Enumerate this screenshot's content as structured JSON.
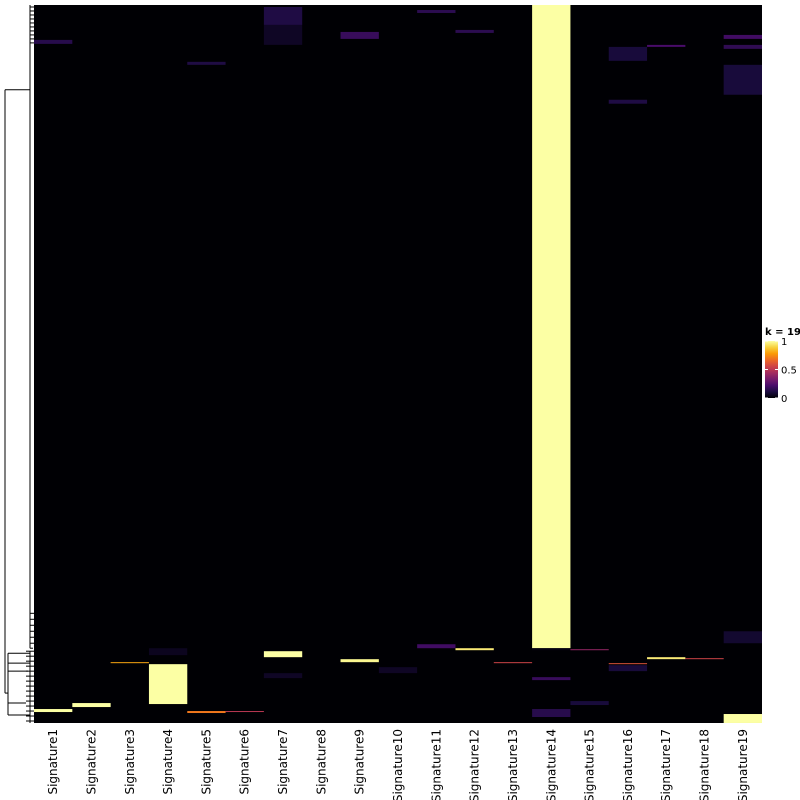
{
  "chart_data": {
    "type": "heatmap",
    "title": "",
    "xlabel": "",
    "ylabel": "",
    "columns": [
      "Signature1",
      "Signature2",
      "Signature3",
      "Signature4",
      "Signature5",
      "Signature6",
      "Signature7",
      "Signature8",
      "Signature9",
      "Signature10",
      "Signature11",
      "Signature12",
      "Signature13",
      "Signature14",
      "Signature15",
      "Signature16",
      "Signature17",
      "Signature18",
      "Signature19"
    ],
    "n_rows": 720,
    "base_value": 0,
    "value_range": [
      0,
      1
    ],
    "colormap": "inferno",
    "colormap_stops": [
      "#000004",
      "#1b0c41",
      "#4a0c6b",
      "#781c6d",
      "#a52c60",
      "#cf4446",
      "#ed6925",
      "#fb9b06",
      "#f7d13d",
      "#fcffa4"
    ],
    "cells": [
      {
        "col": 14,
        "row_start": 0,
        "row_end": 645,
        "value": 1.0
      },
      {
        "col": 14,
        "row_start": 645,
        "row_end": 647,
        "value": 0.02
      },
      {
        "col": 4,
        "row_start": 661,
        "row_end": 701,
        "value": 1.0
      },
      {
        "col": 19,
        "row_start": 711,
        "row_end": 720,
        "value": 1.0
      },
      {
        "col": 7,
        "row_start": 648,
        "row_end": 654,
        "value": 1.0
      },
      {
        "col": 1,
        "row_start": 706,
        "row_end": 709,
        "value": 1.0
      },
      {
        "col": 2,
        "row_start": 700,
        "row_end": 704,
        "value": 1.0
      },
      {
        "col": 9,
        "row_start": 656,
        "row_end": 659,
        "value": 0.98
      },
      {
        "col": 12,
        "row_start": 645,
        "row_end": 647,
        "value": 0.95
      },
      {
        "col": 17,
        "row_start": 654,
        "row_end": 656,
        "value": 0.95
      },
      {
        "col": 3,
        "row_start": 659,
        "row_end": 660,
        "value": 0.8
      },
      {
        "col": 5,
        "row_start": 708,
        "row_end": 710,
        "value": 0.7
      },
      {
        "col": 16,
        "row_start": 660,
        "row_end": 661,
        "value": 0.6
      },
      {
        "col": 13,
        "row_start": 659,
        "row_end": 660,
        "value": 0.55
      },
      {
        "col": 18,
        "row_start": 655,
        "row_end": 656,
        "value": 0.55
      },
      {
        "col": 6,
        "row_start": 708,
        "row_end": 709,
        "value": 0.5
      },
      {
        "col": 15,
        "row_start": 646,
        "row_end": 647,
        "value": 0.4
      },
      {
        "col": 7,
        "row_start": 2,
        "row_end": 20,
        "value": 0.12
      },
      {
        "col": 7,
        "row_start": 20,
        "row_end": 40,
        "value": 0.06
      },
      {
        "col": 9,
        "row_start": 27,
        "row_end": 34,
        "value": 0.18
      },
      {
        "col": 1,
        "row_start": 35,
        "row_end": 39,
        "value": 0.14
      },
      {
        "col": 12,
        "row_start": 25,
        "row_end": 28,
        "value": 0.15
      },
      {
        "col": 16,
        "row_start": 42,
        "row_end": 56,
        "value": 0.1
      },
      {
        "col": 19,
        "row_start": 60,
        "row_end": 90,
        "value": 0.1
      },
      {
        "col": 19,
        "row_start": 30,
        "row_end": 34,
        "value": 0.2
      },
      {
        "col": 19,
        "row_start": 40,
        "row_end": 44,
        "value": 0.16
      },
      {
        "col": 17,
        "row_start": 40,
        "row_end": 42,
        "value": 0.22
      },
      {
        "col": 11,
        "row_start": 5,
        "row_end": 8,
        "value": 0.15
      },
      {
        "col": 11,
        "row_start": 641,
        "row_end": 645,
        "value": 0.2
      },
      {
        "col": 16,
        "row_start": 95,
        "row_end": 99,
        "value": 0.12
      },
      {
        "col": 5,
        "row_start": 57,
        "row_end": 60,
        "value": 0.12
      },
      {
        "col": 19,
        "row_start": 628,
        "row_end": 640,
        "value": 0.08
      },
      {
        "col": 14,
        "row_start": 674,
        "row_end": 677,
        "value": 0.18
      },
      {
        "col": 14,
        "row_start": 706,
        "row_end": 714,
        "value": 0.14
      },
      {
        "col": 16,
        "row_start": 662,
        "row_end": 668,
        "value": 0.1
      },
      {
        "col": 15,
        "row_start": 698,
        "row_end": 702,
        "value": 0.1
      },
      {
        "col": 10,
        "row_start": 664,
        "row_end": 670,
        "value": 0.06
      },
      {
        "col": 4,
        "row_start": 645,
        "row_end": 652,
        "value": 0.05
      },
      {
        "col": 7,
        "row_start": 670,
        "row_end": 675,
        "value": 0.06
      }
    ],
    "legend": {
      "title": "k = 19",
      "ticks": [
        1,
        0.5,
        0
      ],
      "tick_labels": [
        "1",
        "0.5",
        "0"
      ],
      "placement": "right"
    }
  }
}
